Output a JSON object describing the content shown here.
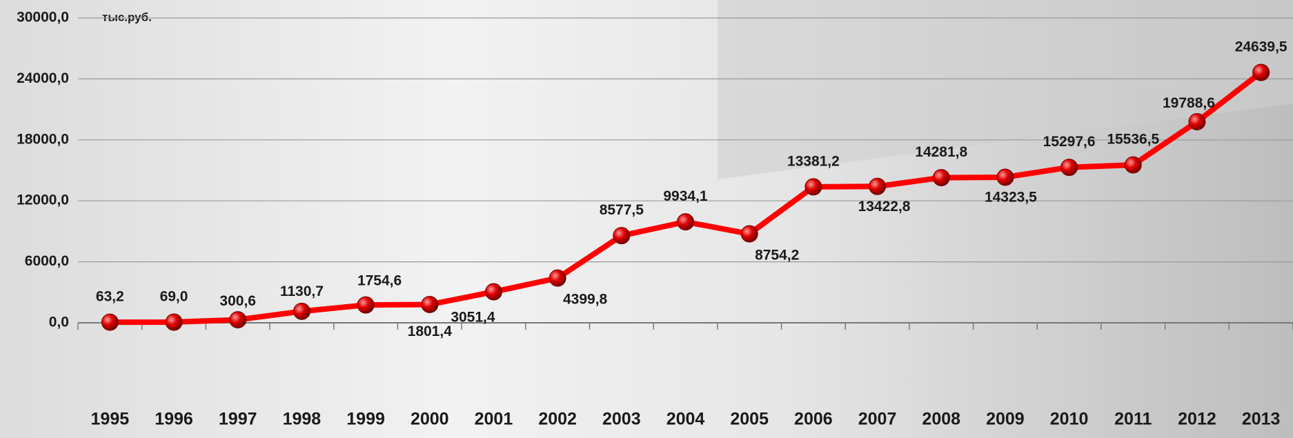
{
  "chart_data": {
    "type": "line",
    "y_label": "тыс.руб.",
    "categories": [
      "1995",
      "1996",
      "1997",
      "1998",
      "1999",
      "2000",
      "2001",
      "2002",
      "2003",
      "2004",
      "2005",
      "2006",
      "2007",
      "2008",
      "2009",
      "2010",
      "2011",
      "2012",
      "2013"
    ],
    "series": [
      {
        "name": "тыс.руб.",
        "color": "#ff0000",
        "values": [
          63.2,
          69.0,
          300.6,
          1130.7,
          1754.6,
          1801.4,
          3051.4,
          4399.8,
          8577.5,
          9934.1,
          8754.2,
          13381.2,
          13422.8,
          14281.8,
          14323.5,
          15297.6,
          15536.5,
          19788.6,
          24639.5
        ],
        "value_labels": [
          "63,2",
          "69,0",
          "300,6",
          "1130,7",
          "1754,6",
          "1801,4",
          "3051,4",
          "4399,8",
          "8577,5",
          "9934,1",
          "8754,2",
          "13381,2",
          "13422,8",
          "14281,8",
          "14323,5",
          "15297,6",
          "15536,5",
          "19788,6",
          "24639,5"
        ]
      }
    ],
    "ylim": [
      0,
      30000
    ],
    "yticks": [
      {
        "value": 0,
        "label": "0,0"
      },
      {
        "value": 6000,
        "label": "6000,0"
      },
      {
        "value": 12000,
        "label": "12000,0"
      },
      {
        "value": 18000,
        "label": "18000,0"
      },
      {
        "value": 24000,
        "label": "24000,0"
      },
      {
        "value": 30000,
        "label": "30000,0"
      }
    ],
    "grid": true
  }
}
